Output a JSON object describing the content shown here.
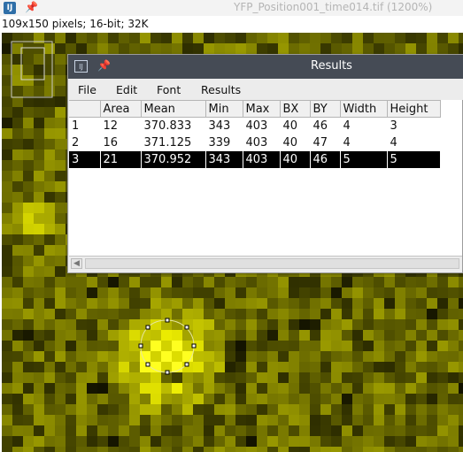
{
  "image_window": {
    "title": "YFP_Position001_time014.tif (1200%)",
    "info": "109x150 pixels; 16-bit; 32K",
    "app_icon": "imagej-icon",
    "pin_icon": "pin-icon"
  },
  "results_window": {
    "title": "Results",
    "app_icon": "imagej-icon",
    "pin_icon": "pin-icon",
    "menu": [
      "File",
      "Edit",
      "Font",
      "Results"
    ],
    "columns": [
      "",
      "Area",
      "Mean",
      "Min",
      "Max",
      "BX",
      "BY",
      "Width",
      "Height"
    ],
    "rows": [
      [
        "1",
        "12",
        "370.833",
        "343",
        "403",
        "40",
        "46",
        "4",
        "3"
      ],
      [
        "2",
        "16",
        "371.125",
        "339",
        "403",
        "40",
        "47",
        "4",
        "4"
      ],
      [
        "3",
        "21",
        "370.952",
        "343",
        "403",
        "40",
        "46",
        "5",
        "5"
      ]
    ],
    "selected_row": 2
  },
  "colors": {
    "pixel_hue": "#ffff00",
    "roi_handle": "#000000",
    "selection_bg": "#000000",
    "results_titlebar": "#454b55"
  }
}
